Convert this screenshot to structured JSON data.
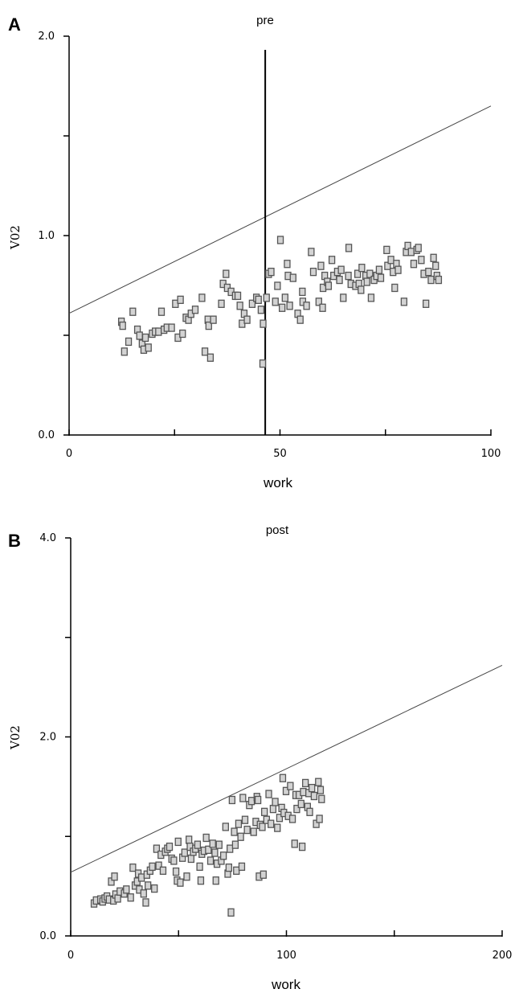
{
  "chart_data": [
    {
      "type": "scatter",
      "panel": "A",
      "title": "pre",
      "xlabel": "work",
      "ylabel": "V02",
      "xlim": [
        0,
        100
      ],
      "ylim": [
        0,
        2.0
      ],
      "xticks": [
        0,
        25,
        50,
        75,
        100
      ],
      "xtick_labels": [
        "0",
        "",
        "50",
        "",
        "100"
      ],
      "yticks": [
        0,
        0.5,
        1.0,
        1.5,
        2.0
      ],
      "ytick_labels": [
        "0.0",
        "",
        "1.0",
        "",
        "2.0"
      ],
      "ref_line": {
        "x": [
          0,
          100
        ],
        "y": [
          0.61,
          1.65
        ]
      },
      "vertical_line_x": 46.5,
      "points": [
        [
          12.5,
          0.57
        ],
        [
          12.8,
          0.55
        ],
        [
          13.2,
          0.42
        ],
        [
          14.2,
          0.47
        ],
        [
          15.2,
          0.62
        ],
        [
          16.3,
          0.53
        ],
        [
          16.8,
          0.5
        ],
        [
          17.4,
          0.46
        ],
        [
          17.8,
          0.43
        ],
        [
          18.2,
          0.49
        ],
        [
          18.9,
          0.44
        ],
        [
          19.8,
          0.51
        ],
        [
          20.5,
          0.52
        ],
        [
          21.3,
          0.52
        ],
        [
          22.0,
          0.62
        ],
        [
          22.6,
          0.53
        ],
        [
          23.3,
          0.54
        ],
        [
          24.4,
          0.54
        ],
        [
          25.3,
          0.66
        ],
        [
          25.9,
          0.49
        ],
        [
          26.5,
          0.68
        ],
        [
          27.0,
          0.51
        ],
        [
          27.8,
          0.59
        ],
        [
          28.4,
          0.58
        ],
        [
          29.0,
          0.61
        ],
        [
          30.0,
          0.63
        ],
        [
          31.6,
          0.69
        ],
        [
          32.3,
          0.42
        ],
        [
          33.0,
          0.58
        ],
        [
          33.2,
          0.55
        ],
        [
          33.6,
          0.39
        ],
        [
          34.3,
          0.58
        ],
        [
          36.2,
          0.66
        ],
        [
          36.6,
          0.76
        ],
        [
          37.3,
          0.81
        ],
        [
          37.6,
          0.74
        ],
        [
          38.5,
          0.72
        ],
        [
          39.5,
          0.7
        ],
        [
          40.1,
          0.7
        ],
        [
          40.6,
          0.65
        ],
        [
          41.1,
          0.56
        ],
        [
          41.6,
          0.61
        ],
        [
          42.3,
          0.58
        ],
        [
          43.5,
          0.66
        ],
        [
          44.5,
          0.69
        ],
        [
          45.0,
          0.68
        ],
        [
          45.6,
          0.63
        ],
        [
          46.0,
          0.36
        ],
        [
          46.1,
          0.56
        ],
        [
          46.9,
          0.69
        ],
        [
          47.4,
          0.81
        ],
        [
          48.0,
          0.82
        ],
        [
          49.0,
          0.67
        ],
        [
          49.5,
          0.75
        ],
        [
          50.2,
          0.98
        ],
        [
          50.6,
          0.64
        ],
        [
          51.3,
          0.69
        ],
        [
          51.8,
          0.86
        ],
        [
          52.0,
          0.8
        ],
        [
          52.4,
          0.65
        ],
        [
          53.2,
          0.79
        ],
        [
          54.3,
          0.61
        ],
        [
          54.9,
          0.58
        ],
        [
          55.4,
          0.72
        ],
        [
          55.5,
          0.67
        ],
        [
          56.4,
          0.65
        ],
        [
          57.5,
          0.92
        ],
        [
          58.0,
          0.82
        ],
        [
          59.3,
          0.67
        ],
        [
          59.8,
          0.85
        ],
        [
          60.2,
          0.64
        ],
        [
          60.3,
          0.74
        ],
        [
          60.7,
          0.8
        ],
        [
          61.3,
          0.77
        ],
        [
          61.6,
          0.75
        ],
        [
          62.4,
          0.88
        ],
        [
          62.8,
          0.8
        ],
        [
          63.7,
          0.82
        ],
        [
          64.2,
          0.78
        ],
        [
          64.6,
          0.83
        ],
        [
          65.1,
          0.69
        ],
        [
          66.3,
          0.8
        ],
        [
          66.4,
          0.94
        ],
        [
          66.9,
          0.76
        ],
        [
          68.0,
          0.75
        ],
        [
          68.5,
          0.81
        ],
        [
          68.8,
          0.76
        ],
        [
          69.3,
          0.73
        ],
        [
          69.5,
          0.84
        ],
        [
          70.4,
          0.8
        ],
        [
          70.7,
          0.77
        ],
        [
          71.4,
          0.81
        ],
        [
          71.7,
          0.69
        ],
        [
          72.4,
          0.78
        ],
        [
          73.0,
          0.8
        ],
        [
          73.6,
          0.83
        ],
        [
          74.0,
          0.79
        ],
        [
          75.4,
          0.93
        ],
        [
          75.6,
          0.85
        ],
        [
          76.4,
          0.88
        ],
        [
          76.9,
          0.82
        ],
        [
          77.3,
          0.74
        ],
        [
          77.7,
          0.86
        ],
        [
          78.1,
          0.83
        ],
        [
          79.5,
          0.67
        ],
        [
          80.0,
          0.92
        ],
        [
          80.4,
          0.95
        ],
        [
          81.2,
          0.92
        ],
        [
          81.8,
          0.86
        ],
        [
          82.5,
          0.93
        ],
        [
          82.9,
          0.94
        ],
        [
          83.6,
          0.88
        ],
        [
          84.2,
          0.81
        ],
        [
          84.7,
          0.66
        ],
        [
          85.3,
          0.82
        ],
        [
          85.9,
          0.78
        ],
        [
          86.5,
          0.89
        ],
        [
          87.0,
          0.85
        ],
        [
          87.3,
          0.8
        ],
        [
          87.7,
          0.78
        ]
      ]
    },
    {
      "type": "scatter",
      "panel": "B",
      "title": "post",
      "xlabel": "work",
      "ylabel": "V02",
      "xlim": [
        0,
        200
      ],
      "ylim": [
        0,
        4.0
      ],
      "xticks": [
        0,
        50,
        100,
        150,
        200
      ],
      "xtick_labels": [
        "0",
        "",
        "100",
        "",
        "200"
      ],
      "yticks": [
        0,
        1.0,
        2.0,
        3.0,
        4.0
      ],
      "ytick_labels": [
        "0.0",
        "",
        "2.0",
        "",
        "4.0"
      ],
      "ref_line": {
        "x": [
          0,
          200
        ],
        "y": [
          0.64,
          2.72
        ]
      },
      "points": [
        [
          11,
          0.33
        ],
        [
          12,
          0.36
        ],
        [
          14,
          0.37
        ],
        [
          15,
          0.35
        ],
        [
          16,
          0.38
        ],
        [
          17,
          0.4
        ],
        [
          18,
          0.37
        ],
        [
          19,
          0.55
        ],
        [
          20,
          0.36
        ],
        [
          20.5,
          0.6
        ],
        [
          21,
          0.42
        ],
        [
          22,
          0.38
        ],
        [
          23,
          0.45
        ],
        [
          25,
          0.43
        ],
        [
          26,
          0.47
        ],
        [
          28,
          0.39
        ],
        [
          29,
          0.69
        ],
        [
          30,
          0.51
        ],
        [
          31,
          0.55
        ],
        [
          31.5,
          0.63
        ],
        [
          32,
          0.47
        ],
        [
          33,
          0.59
        ],
        [
          34,
          0.43
        ],
        [
          35,
          0.34
        ],
        [
          35.5,
          0.62
        ],
        [
          36,
          0.51
        ],
        [
          37,
          0.66
        ],
        [
          38,
          0.7
        ],
        [
          39,
          0.48
        ],
        [
          40,
          0.88
        ],
        [
          41,
          0.71
        ],
        [
          42,
          0.82
        ],
        [
          43,
          0.66
        ],
        [
          44,
          0.85
        ],
        [
          45,
          0.88
        ],
        [
          46,
          0.9
        ],
        [
          47,
          0.78
        ],
        [
          48,
          0.76
        ],
        [
          49,
          0.65
        ],
        [
          49.5,
          0.56
        ],
        [
          50,
          0.95
        ],
        [
          51,
          0.54
        ],
        [
          52,
          0.79
        ],
        [
          53,
          0.84
        ],
        [
          54,
          0.6
        ],
        [
          55,
          0.97
        ],
        [
          55.5,
          0.9
        ],
        [
          56,
          0.78
        ],
        [
          57,
          0.85
        ],
        [
          58,
          0.88
        ],
        [
          59,
          0.92
        ],
        [
          60,
          0.7
        ],
        [
          60.5,
          0.56
        ],
        [
          61,
          0.83
        ],
        [
          62,
          0.86
        ],
        [
          63,
          0.99
        ],
        [
          64,
          0.87
        ],
        [
          65,
          0.76
        ],
        [
          66,
          0.93
        ],
        [
          67,
          0.84
        ],
        [
          67.5,
          0.56
        ],
        [
          68,
          0.73
        ],
        [
          69,
          0.92
        ],
        [
          70,
          0.76
        ],
        [
          71,
          0.81
        ],
        [
          72,
          1.1
        ],
        [
          73,
          0.63
        ],
        [
          73.5,
          0.69
        ],
        [
          74,
          0.88
        ],
        [
          74.5,
          0.24
        ],
        [
          75,
          1.37
        ],
        [
          76,
          1.05
        ],
        [
          76.5,
          0.92
        ],
        [
          77,
          0.66
        ],
        [
          78,
          1.13
        ],
        [
          79,
          1.0
        ],
        [
          79.5,
          0.7
        ],
        [
          80,
          1.39
        ],
        [
          81,
          1.17
        ],
        [
          82,
          1.07
        ],
        [
          83,
          1.32
        ],
        [
          84,
          1.36
        ],
        [
          85,
          1.05
        ],
        [
          86,
          1.15
        ],
        [
          86.5,
          1.4
        ],
        [
          87,
          1.37
        ],
        [
          87.5,
          0.6
        ],
        [
          88,
          1.12
        ],
        [
          89,
          1.1
        ],
        [
          89.5,
          0.62
        ],
        [
          90,
          1.25
        ],
        [
          91,
          1.17
        ],
        [
          92,
          1.43
        ],
        [
          93,
          1.13
        ],
        [
          94,
          1.28
        ],
        [
          95,
          1.35
        ],
        [
          96,
          1.09
        ],
        [
          97,
          1.19
        ],
        [
          98,
          1.29
        ],
        [
          98.5,
          1.59
        ],
        [
          99,
          1.24
        ],
        [
          100,
          1.46
        ],
        [
          101,
          1.21
        ],
        [
          102,
          1.51
        ],
        [
          103,
          1.18
        ],
        [
          104,
          0.93
        ],
        [
          104.5,
          1.42
        ],
        [
          105,
          1.28
        ],
        [
          106,
          1.42
        ],
        [
          107,
          1.33
        ],
        [
          107.5,
          0.9
        ],
        [
          108,
          1.45
        ],
        [
          109,
          1.54
        ],
        [
          110,
          1.3
        ],
        [
          110.5,
          1.44
        ],
        [
          111,
          1.25
        ],
        [
          112,
          1.49
        ],
        [
          113,
          1.41
        ],
        [
          114,
          1.13
        ],
        [
          115,
          1.55
        ],
        [
          115.5,
          1.18
        ],
        [
          116,
          1.47
        ],
        [
          116.5,
          1.38
        ]
      ]
    }
  ]
}
